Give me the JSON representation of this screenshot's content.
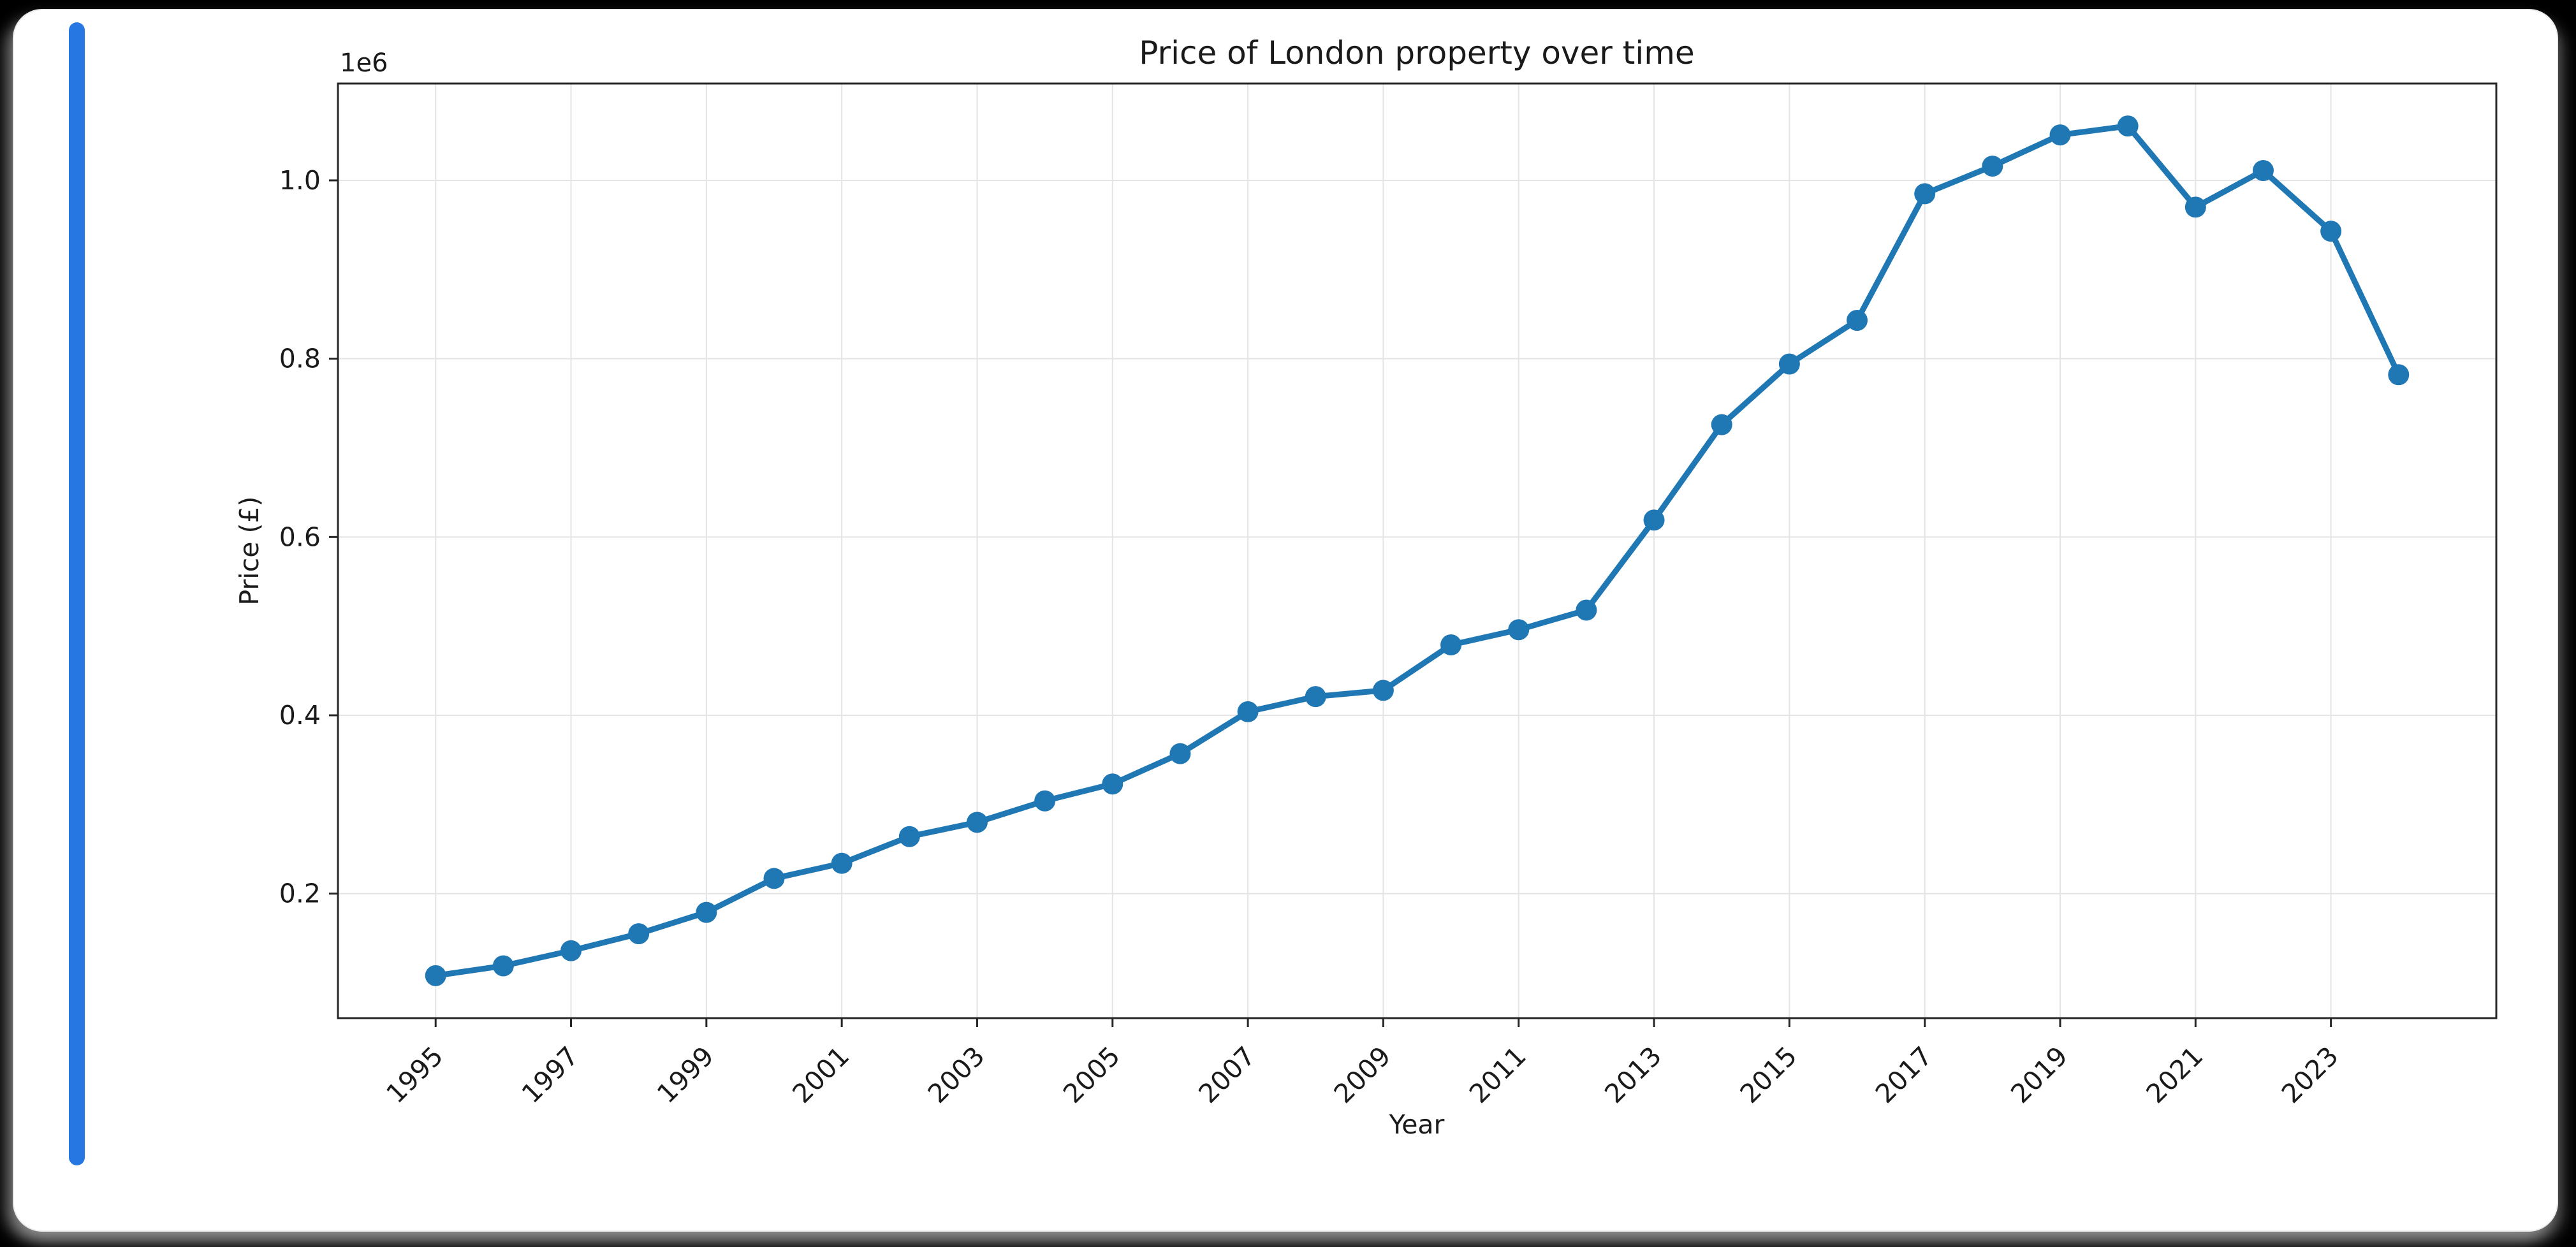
{
  "window": {
    "bg": "#000000",
    "card_bg": "#ffffff",
    "accent_bar_color": "#2777e3"
  },
  "chart_data": {
    "type": "line",
    "title": "Price of London property over time",
    "xlabel": "Year",
    "ylabel": "Price (£)",
    "offset_text": "1e6",
    "x": [
      1995,
      1996,
      1997,
      1998,
      1999,
      2000,
      2001,
      2002,
      2003,
      2004,
      2005,
      2006,
      2007,
      2008,
      2009,
      2010,
      2011,
      2012,
      2013,
      2014,
      2015,
      2016,
      2017,
      2018,
      2019,
      2020,
      2021,
      2022,
      2023,
      2024
    ],
    "values": [
      108000,
      119000,
      136000,
      155000,
      179000,
      217000,
      234000,
      264000,
      280000,
      304000,
      323000,
      357000,
      404000,
      421000,
      428000,
      479000,
      496000,
      518000,
      619000,
      726000,
      794000,
      843000,
      985000,
      1016000,
      1051000,
      1061000,
      970000,
      1011000,
      943000,
      782000
    ],
    "xlim": [
      1993.5568,
      2025.4432
    ],
    "ylim": [
      60350,
      1108650
    ],
    "x_tick_years": [
      1995,
      1997,
      1999,
      2001,
      2003,
      2005,
      2007,
      2009,
      2011,
      2013,
      2015,
      2017,
      2019,
      2021,
      2023
    ],
    "y_tick_values": [
      200000,
      400000,
      600000,
      800000,
      1000000
    ],
    "y_tick_labels": [
      "0.2",
      "0.4",
      "0.6",
      "0.8",
      "1.0"
    ],
    "line_color": "#1f77b4",
    "marker": "o",
    "grid": true,
    "legend_position": "none"
  }
}
